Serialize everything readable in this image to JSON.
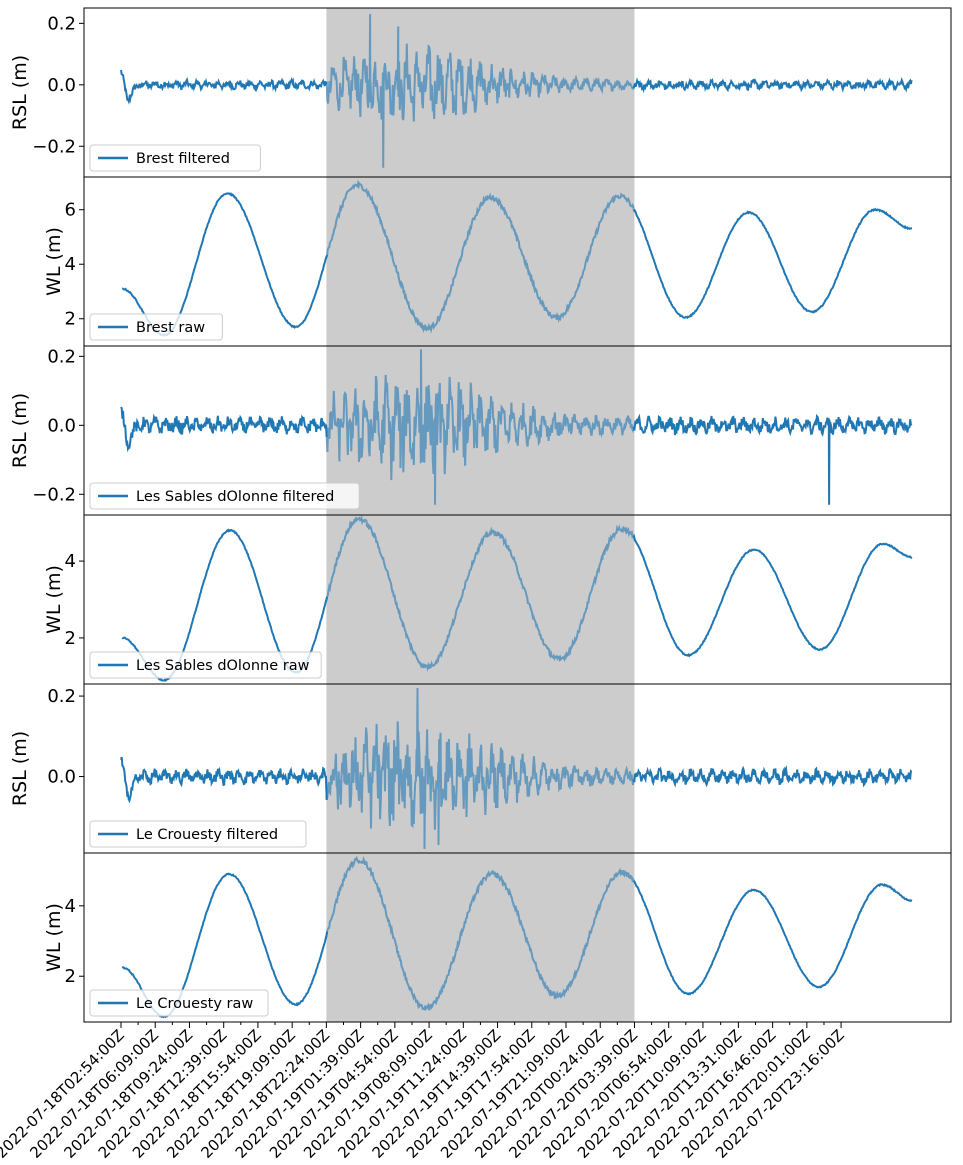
{
  "chart_data": {
    "type": "line",
    "series_color": "#1f77b4",
    "shade_color": "#cccccc",
    "shaded_region": {
      "start": "2022-07-18T22:24:00Z",
      "end": "2022-07-20T03:39:00Z"
    },
    "x_range": [
      "2022-07-18T00:00:00Z",
      "2022-07-21T00:00:00Z"
    ],
    "x_tick_labels": [
      "2022-07-18T02:54:00Z",
      "2022-07-18T06:09:00Z",
      "2022-07-18T09:24:00Z",
      "2022-07-18T12:39:00Z",
      "2022-07-18T15:54:00Z",
      "2022-07-18T19:09:00Z",
      "2022-07-18T22:24:00Z",
      "2022-07-19T01:39:00Z",
      "2022-07-19T04:54:00Z",
      "2022-07-19T08:09:00Z",
      "2022-07-19T11:24:00Z",
      "2022-07-19T14:39:00Z",
      "2022-07-19T17:54:00Z",
      "2022-07-19T21:09:00Z",
      "2022-07-20T00:24:00Z",
      "2022-07-20T03:39:00Z",
      "2022-07-20T06:54:00Z",
      "2022-07-20T10:09:00Z",
      "2022-07-20T13:31:00Z",
      "2022-07-20T16:46:00Z",
      "2022-07-20T20:01:00Z",
      "2022-07-20T23:16:00Z"
    ],
    "panels": [
      {
        "ylabel": "RSL (m)",
        "ylim": [
          -0.3,
          0.25
        ],
        "yticks": [
          -0.2,
          0.0,
          0.2
        ],
        "yticklabels": [
          "−0.2",
          "0.0",
          "0.2"
        ],
        "legend": "Brest filtered",
        "kind": "residual",
        "noise_amplitude": 0.012,
        "event_amplitude": 0.09,
        "spikes": [
          {
            "t": "2022-07-19T02:30:00Z",
            "v": 0.23
          },
          {
            "t": "2022-07-19T03:45:00Z",
            "v": -0.27
          },
          {
            "t": "2022-07-19T05:10:00Z",
            "v": 0.19
          }
        ]
      },
      {
        "ylabel": "WL (m)",
        "ylim": [
          1.0,
          7.2
        ],
        "yticks": [
          2,
          4,
          6
        ],
        "yticklabels": [
          "2",
          "4",
          "6"
        ],
        "legend": "Brest raw",
        "kind": "tide",
        "extrema": [
          {
            "t": "2022-07-18T03:00:00Z",
            "v": 3.1
          },
          {
            "t": "2022-07-18T07:00:00Z",
            "v": 1.4
          },
          {
            "t": "2022-07-18T13:00:00Z",
            "v": 6.6
          },
          {
            "t": "2022-07-18T19:30:00Z",
            "v": 1.7
          },
          {
            "t": "2022-07-19T01:20:00Z",
            "v": 6.9
          },
          {
            "t": "2022-07-19T08:00:00Z",
            "v": 1.65
          },
          {
            "t": "2022-07-19T14:00:00Z",
            "v": 6.45
          },
          {
            "t": "2022-07-19T20:15:00Z",
            "v": 2.05
          },
          {
            "t": "2022-07-20T02:15:00Z",
            "v": 6.5
          },
          {
            "t": "2022-07-20T08:30:00Z",
            "v": 2.05
          },
          {
            "t": "2022-07-20T14:30:00Z",
            "v": 5.9
          },
          {
            "t": "2022-07-20T20:30:00Z",
            "v": 2.25
          },
          {
            "t": "2022-07-21T02:30:00Z",
            "v": 6.0
          },
          {
            "t": "2022-07-21T06:00:00Z",
            "v": 5.3
          }
        ]
      },
      {
        "ylabel": "RSL (m)",
        "ylim": [
          -0.26,
          0.23
        ],
        "yticks": [
          -0.2,
          0.0,
          0.2
        ],
        "yticklabels": [
          "−0.2",
          "0.0",
          "0.2"
        ],
        "legend": "Les Sables dOlonne filtered",
        "kind": "residual",
        "noise_amplitude": 0.02,
        "event_amplitude": 0.1,
        "spikes": [
          {
            "t": "2022-07-19T07:20:00Z",
            "v": 0.22
          },
          {
            "t": "2022-07-19T08:40:00Z",
            "v": -0.23
          },
          {
            "t": "2022-07-20T22:05:00Z",
            "v": -0.23
          }
        ]
      },
      {
        "ylabel": "WL (m)",
        "ylim": [
          0.8,
          5.2
        ],
        "yticks": [
          2,
          4
        ],
        "yticklabels": [
          "2",
          "4"
        ],
        "legend": "Les Sables dOlonne raw",
        "kind": "tide",
        "extrema": [
          {
            "t": "2022-07-18T03:00:00Z",
            "v": 2.0
          },
          {
            "t": "2022-07-18T07:00:00Z",
            "v": 0.9
          },
          {
            "t": "2022-07-18T13:15:00Z",
            "v": 4.8
          },
          {
            "t": "2022-07-18T19:30:00Z",
            "v": 1.1
          },
          {
            "t": "2022-07-19T01:30:00Z",
            "v": 5.1
          },
          {
            "t": "2022-07-19T08:00:00Z",
            "v": 1.25
          },
          {
            "t": "2022-07-19T14:15:00Z",
            "v": 4.75
          },
          {
            "t": "2022-07-19T20:30:00Z",
            "v": 1.45
          },
          {
            "t": "2022-07-20T02:30:00Z",
            "v": 4.85
          },
          {
            "t": "2022-07-20T08:45:00Z",
            "v": 1.55
          },
          {
            "t": "2022-07-20T15:00:00Z",
            "v": 4.3
          },
          {
            "t": "2022-07-20T21:15:00Z",
            "v": 1.7
          },
          {
            "t": "2022-07-21T03:15:00Z",
            "v": 4.45
          },
          {
            "t": "2022-07-21T06:00:00Z",
            "v": 4.1
          }
        ]
      },
      {
        "ylabel": "RSL (m)",
        "ylim": [
          -0.19,
          0.23
        ],
        "yticks": [
          0.0,
          0.2
        ],
        "yticklabels": [
          "0.0",
          "0.2"
        ],
        "legend": "Le Crouesty filtered",
        "kind": "residual",
        "noise_amplitude": 0.015,
        "event_amplitude": 0.1,
        "spikes": [
          {
            "t": "2022-07-19T07:00:00Z",
            "v": 0.22
          },
          {
            "t": "2022-07-19T07:40:00Z",
            "v": -0.18
          },
          {
            "t": "2022-07-19T09:00:00Z",
            "v": -0.17
          }
        ]
      },
      {
        "ylabel": "WL (m)",
        "ylim": [
          0.7,
          5.5
        ],
        "yticks": [
          2,
          4
        ],
        "yticklabels": [
          "2",
          "4"
        ],
        "legend": "Le Crouesty raw",
        "kind": "tide",
        "extrema": [
          {
            "t": "2022-07-18T03:00:00Z",
            "v": 2.25
          },
          {
            "t": "2022-07-18T07:00:00Z",
            "v": 0.85
          },
          {
            "t": "2022-07-18T13:10:00Z",
            "v": 4.9
          },
          {
            "t": "2022-07-18T19:30:00Z",
            "v": 1.2
          },
          {
            "t": "2022-07-19T01:30:00Z",
            "v": 5.3
          },
          {
            "t": "2022-07-19T07:50:00Z",
            "v": 1.1
          },
          {
            "t": "2022-07-19T14:10:00Z",
            "v": 4.9
          },
          {
            "t": "2022-07-19T20:20:00Z",
            "v": 1.45
          },
          {
            "t": "2022-07-20T02:30:00Z",
            "v": 4.95
          },
          {
            "t": "2022-07-20T08:45:00Z",
            "v": 1.5
          },
          {
            "t": "2022-07-20T15:00:00Z",
            "v": 4.45
          },
          {
            "t": "2022-07-20T21:10:00Z",
            "v": 1.7
          },
          {
            "t": "2022-07-21T03:10:00Z",
            "v": 4.6
          },
          {
            "t": "2022-07-21T06:00:00Z",
            "v": 4.15
          }
        ]
      }
    ]
  }
}
